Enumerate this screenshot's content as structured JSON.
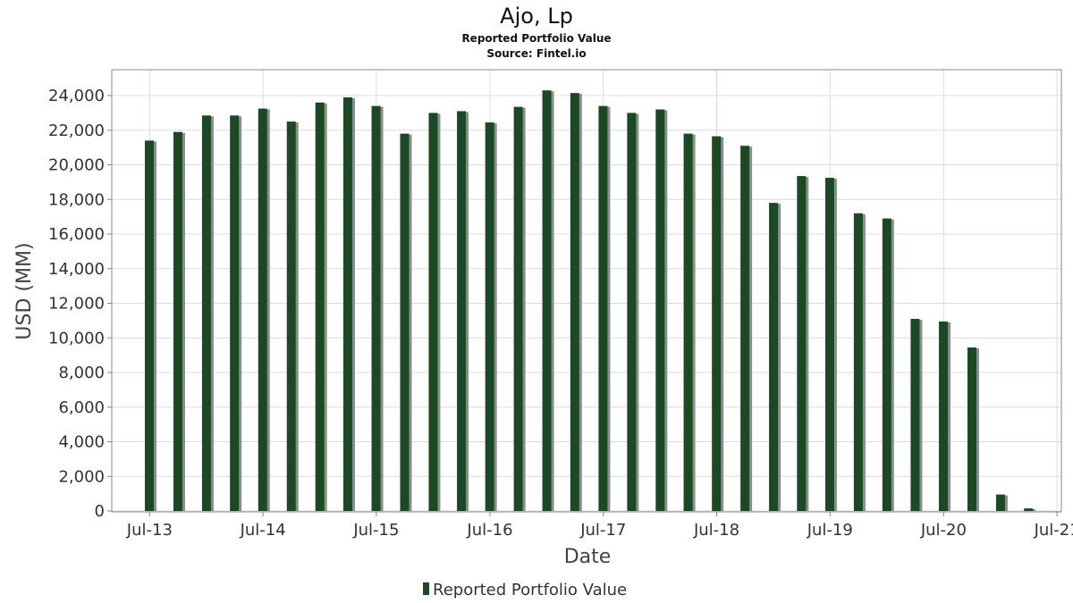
{
  "chart_data": {
    "type": "bar",
    "title": "Ajo, Lp",
    "subtitle": "Reported Portfolio Value",
    "source": "Source: Fintel.io",
    "xlabel": "Date",
    "ylabel": "USD (MM)",
    "ylim": [
      0,
      25000
    ],
    "yticks": [
      0,
      2000,
      4000,
      6000,
      8000,
      10000,
      12000,
      14000,
      16000,
      18000,
      20000,
      22000,
      24000
    ],
    "ytick_labels": [
      "0",
      "2,000",
      "4,000",
      "6,000",
      "8,000",
      "10,000",
      "12,000",
      "14,000",
      "16,000",
      "18,000",
      "20,000",
      "22,000",
      "24,000"
    ],
    "xlim": [
      "2013-03-01",
      "2021-07-15"
    ],
    "xticks": [
      {
        "date": "2013-07-01",
        "label": "Jul-13"
      },
      {
        "date": "2014-07-01",
        "label": "Jul-14"
      },
      {
        "date": "2015-07-01",
        "label": "Jul-15"
      },
      {
        "date": "2016-07-01",
        "label": "Jul-16"
      },
      {
        "date": "2017-07-01",
        "label": "Jul-17"
      },
      {
        "date": "2018-07-01",
        "label": "Jul-18"
      },
      {
        "date": "2019-07-01",
        "label": "Jul-19"
      },
      {
        "date": "2020-07-01",
        "label": "Jul-20"
      },
      {
        "date": "2021-07-01",
        "label": "Jul-21"
      }
    ],
    "grid": true,
    "legend_position": "bottom-center",
    "series": [
      {
        "name": "Reported Portfolio Value",
        "color": "#1a4a24",
        "shadow_color": "#8c8c8c",
        "points": [
          {
            "date": "2013-06-30",
            "value": 21400
          },
          {
            "date": "2013-09-30",
            "value": 21900
          },
          {
            "date": "2013-12-31",
            "value": 22850
          },
          {
            "date": "2014-03-31",
            "value": 22850
          },
          {
            "date": "2014-06-30",
            "value": 23250
          },
          {
            "date": "2014-09-30",
            "value": 22500
          },
          {
            "date": "2014-12-31",
            "value": 23600
          },
          {
            "date": "2015-03-31",
            "value": 23900
          },
          {
            "date": "2015-06-30",
            "value": 23400
          },
          {
            "date": "2015-09-30",
            "value": 21800
          },
          {
            "date": "2015-12-31",
            "value": 23000
          },
          {
            "date": "2016-03-31",
            "value": 23100
          },
          {
            "date": "2016-06-30",
            "value": 22450
          },
          {
            "date": "2016-09-30",
            "value": 23350
          },
          {
            "date": "2016-12-31",
            "value": 24300
          },
          {
            "date": "2017-03-31",
            "value": 24150
          },
          {
            "date": "2017-06-30",
            "value": 23400
          },
          {
            "date": "2017-09-30",
            "value": 23000
          },
          {
            "date": "2017-12-31",
            "value": 23200
          },
          {
            "date": "2018-03-31",
            "value": 21800
          },
          {
            "date": "2018-06-30",
            "value": 21650
          },
          {
            "date": "2018-09-30",
            "value": 21100
          },
          {
            "date": "2018-12-31",
            "value": 17800
          },
          {
            "date": "2019-03-31",
            "value": 19350
          },
          {
            "date": "2019-06-30",
            "value": 19250
          },
          {
            "date": "2019-09-30",
            "value": 17200
          },
          {
            "date": "2019-12-31",
            "value": 16900
          },
          {
            "date": "2020-03-31",
            "value": 11100
          },
          {
            "date": "2020-06-30",
            "value": 10950
          },
          {
            "date": "2020-09-30",
            "value": 9450
          },
          {
            "date": "2020-12-31",
            "value": 950
          },
          {
            "date": "2021-03-31",
            "value": 150
          }
        ]
      }
    ]
  }
}
